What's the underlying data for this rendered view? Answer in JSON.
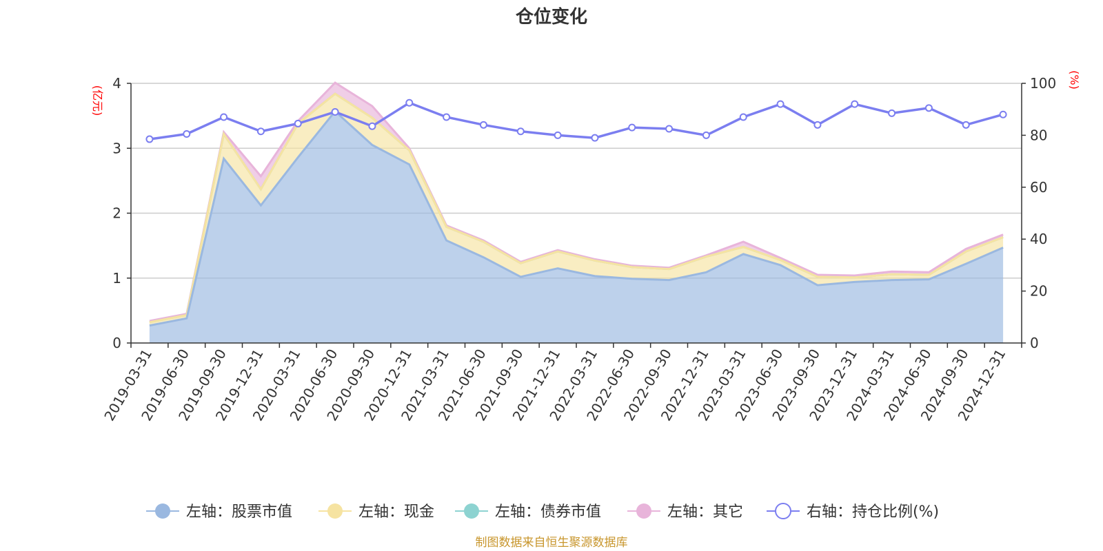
{
  "chart_data": {
    "type": "area",
    "title": "仓位变化",
    "left_axis_unit": "(亿元)",
    "right_axis_unit": "(%)",
    "left_ylim": [
      0,
      4
    ],
    "left_ticks": [
      "0",
      "1",
      "2",
      "3",
      "4"
    ],
    "right_ylim": [
      0,
      100
    ],
    "right_ticks": [
      "0",
      "20",
      "40",
      "60",
      "80",
      "100"
    ],
    "categories": [
      "2019-03-31",
      "2019-06-30",
      "2019-09-30",
      "2019-12-31",
      "2020-03-31",
      "2020-06-30",
      "2020-09-30",
      "2020-12-31",
      "2021-03-31",
      "2021-06-30",
      "2021-09-30",
      "2021-12-31",
      "2022-03-31",
      "2022-06-30",
      "2022-09-30",
      "2022-12-31",
      "2023-03-31",
      "2023-06-30",
      "2023-09-30",
      "2023-12-31",
      "2024-03-31",
      "2024-06-30",
      "2024-09-30",
      "2024-12-31"
    ],
    "series": [
      {
        "name": "左轴：股票市值",
        "axis": "left",
        "kind": "area",
        "color": "#9ab8e0",
        "values": [
          0.27,
          0.38,
          2.84,
          2.12,
          2.86,
          3.57,
          3.05,
          2.75,
          1.58,
          1.32,
          1.02,
          1.15,
          1.03,
          0.99,
          0.97,
          1.09,
          1.37,
          1.2,
          0.89,
          0.94,
          0.97,
          0.98,
          1.22,
          1.47
        ]
      },
      {
        "name": "左轴：现金",
        "axis": "left",
        "kind": "area",
        "color": "#f6e3a1",
        "values": [
          0.05,
          0.05,
          0.38,
          0.25,
          0.52,
          0.27,
          0.42,
          0.22,
          0.21,
          0.24,
          0.21,
          0.26,
          0.24,
          0.18,
          0.17,
          0.24,
          0.11,
          0.08,
          0.13,
          0.07,
          0.09,
          0.07,
          0.19,
          0.16
        ]
      },
      {
        "name": "左轴：债券市值",
        "axis": "left",
        "kind": "area",
        "color": "#8dd3d1",
        "values": [
          0,
          0,
          0,
          0,
          0,
          0,
          0,
          0,
          0,
          0,
          0,
          0,
          0,
          0,
          0,
          0,
          0,
          0,
          0,
          0,
          0,
          0,
          0,
          0
        ]
      },
      {
        "name": "左轴：其它",
        "axis": "left",
        "kind": "area",
        "color": "#e8b4da",
        "values": [
          0.02,
          0.02,
          0.03,
          0.2,
          0.04,
          0.17,
          0.18,
          0.03,
          0.02,
          0.02,
          0.02,
          0.02,
          0.02,
          0.02,
          0.02,
          0.02,
          0.08,
          0.03,
          0.03,
          0.03,
          0.04,
          0.04,
          0.04,
          0.04
        ]
      },
      {
        "name": "右轴：持仓比例(%)",
        "axis": "right",
        "kind": "line",
        "color": "#7b7ef0",
        "values": [
          78.5,
          80.5,
          87.0,
          81.5,
          84.5,
          89.0,
          83.5,
          92.5,
          87.0,
          84.0,
          81.5,
          80.0,
          79.0,
          83.0,
          82.5,
          80.0,
          87.0,
          92.0,
          84.0,
          92.0,
          88.5,
          90.5,
          84.0,
          88.0
        ]
      }
    ]
  },
  "legend": [
    {
      "label": "左轴：股票市值",
      "color": "#9ab8e0",
      "hollow": false
    },
    {
      "label": "左轴：现金",
      "color": "#f6e3a1",
      "hollow": false
    },
    {
      "label": "左轴：债券市值",
      "color": "#8dd3d1",
      "hollow": false
    },
    {
      "label": "左轴：其它",
      "color": "#e8b4da",
      "hollow": false
    },
    {
      "label": "右轴：持仓比例(%)",
      "color": "#7b7ef0",
      "hollow": true
    }
  ],
  "source": "制图数据来自恒生聚源数据库"
}
